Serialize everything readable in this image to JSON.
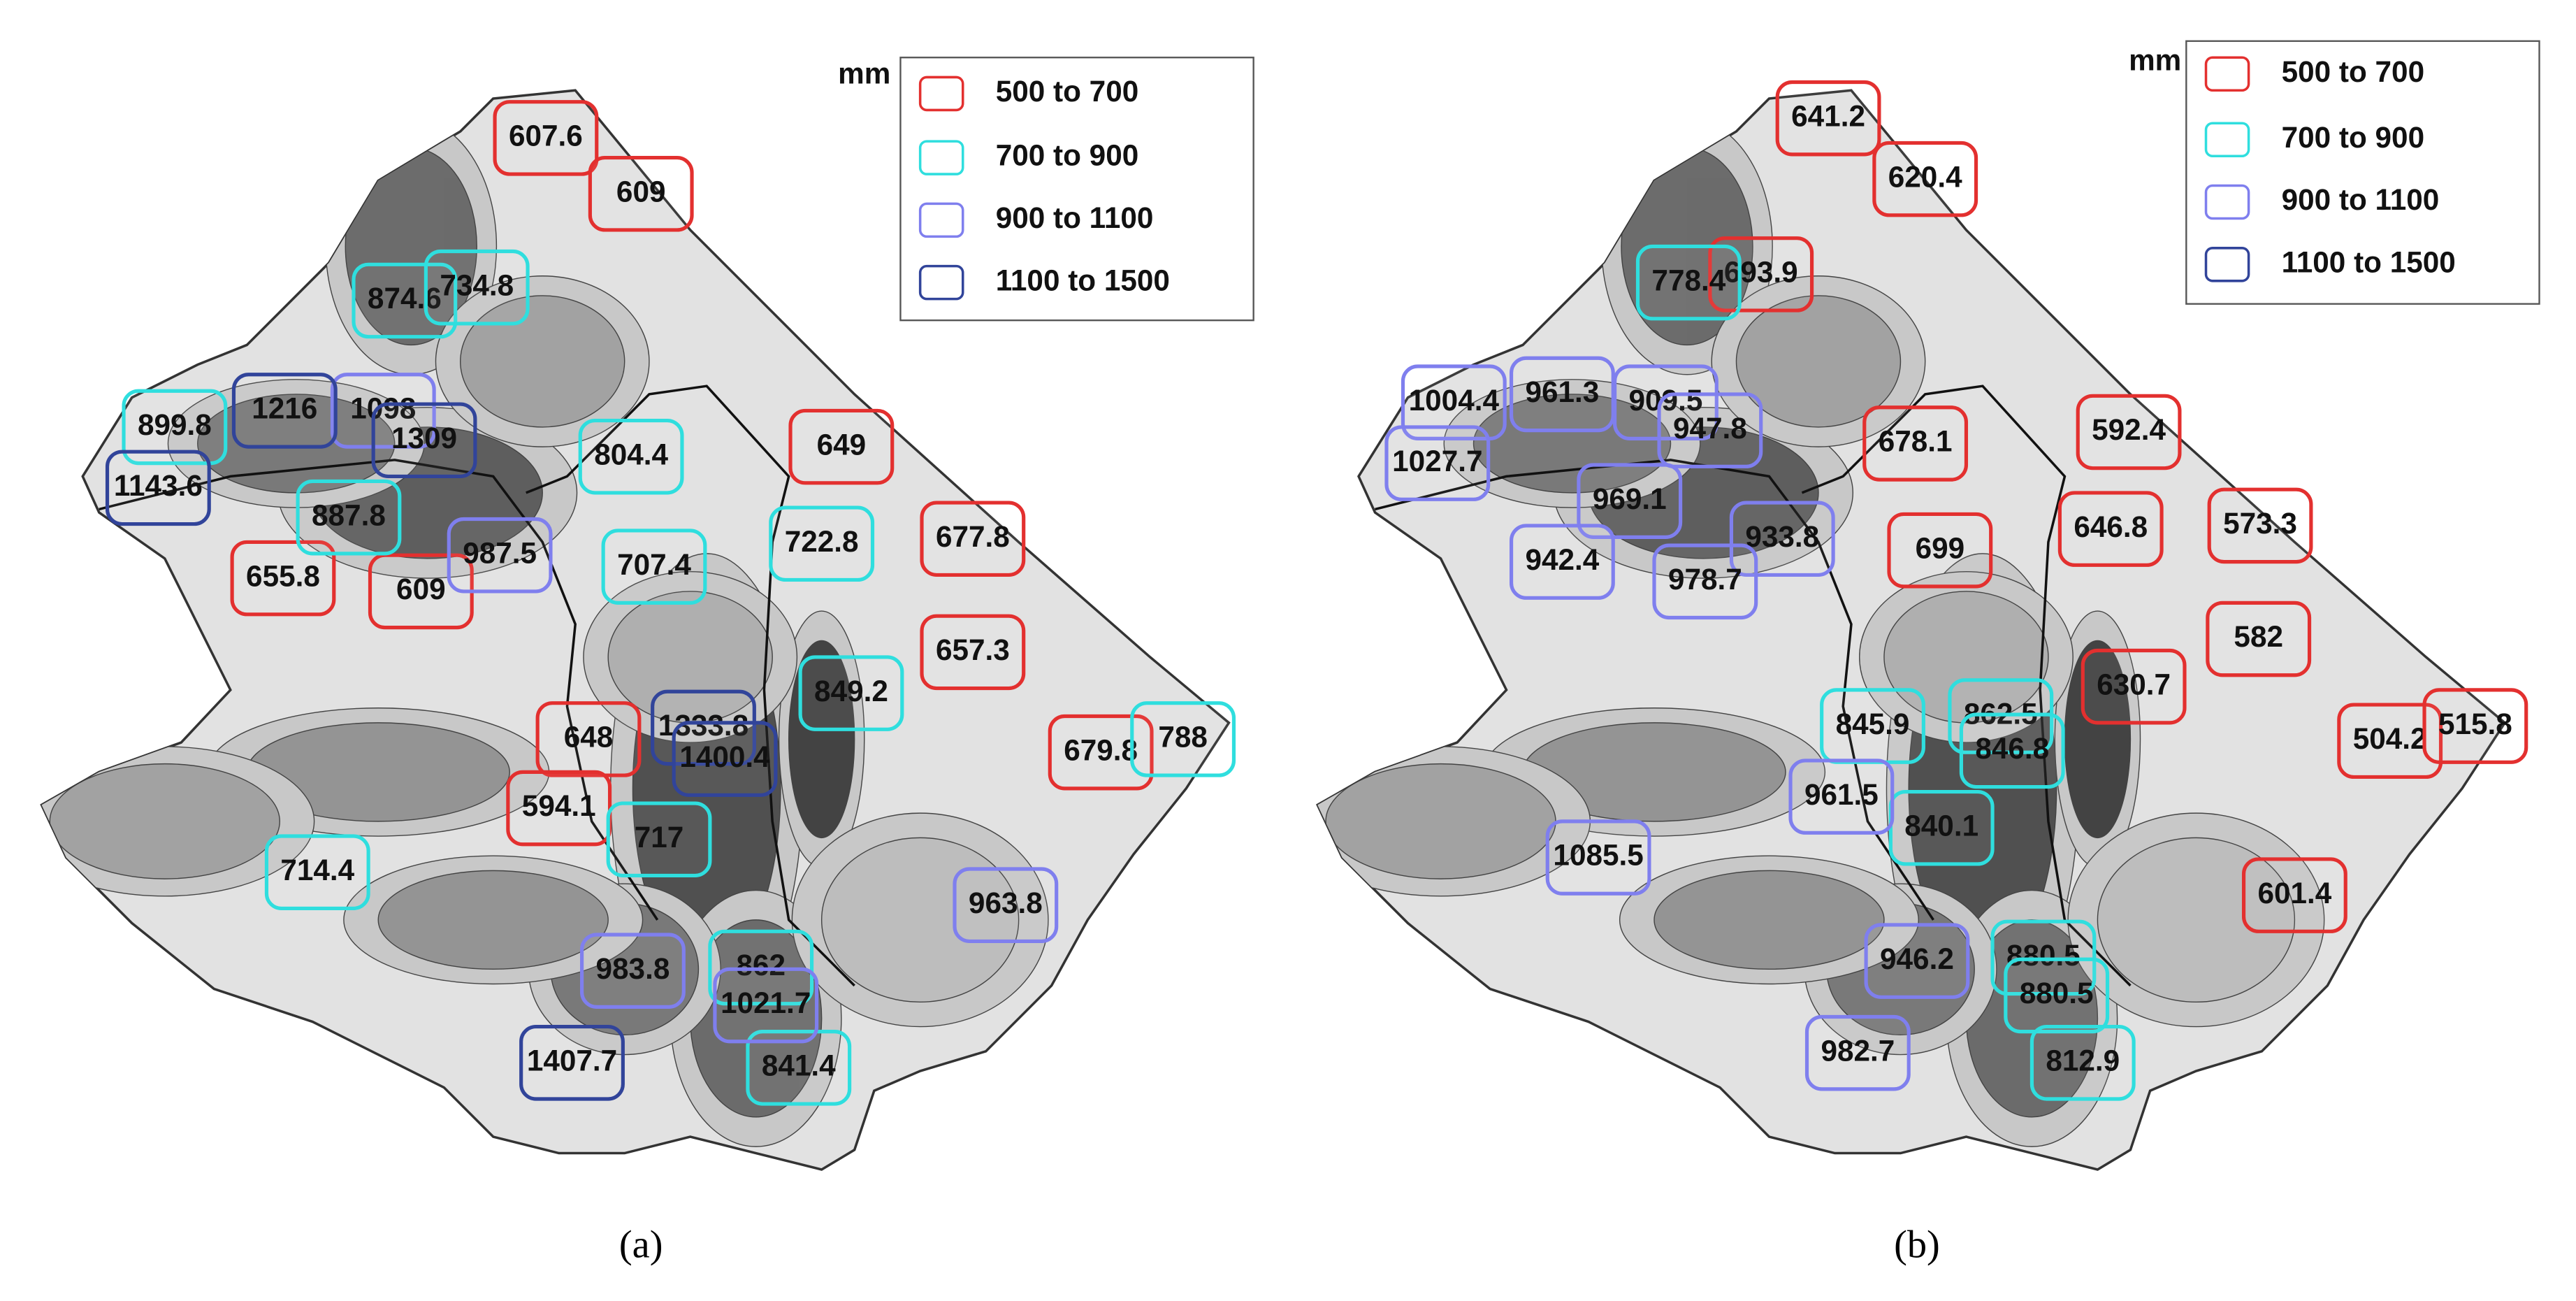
{
  "panels": [
    {
      "caption": "(a)",
      "unit": "mm",
      "legend": [
        {
          "label": "500 to 700",
          "color": "#e3302f",
          "stations": [
            "607.6",
            "609",
            "649",
            "655.8",
            "609",
            "677.8",
            "657.3",
            "648",
            "679.8",
            "594.1"
          ]
        },
        {
          "label": "700 to 900",
          "color": "#2fdede",
          "stations": [
            "874.6",
            "734.8",
            "899.8",
            "887.8",
            "804.4",
            "707.4",
            "722.8",
            "849.2",
            "788",
            "717",
            "714.4",
            "862",
            "841.4"
          ]
        },
        {
          "label": "900 to 1100",
          "color": "#7f7fee",
          "stations": [
            "1098",
            "987.5",
            "963.8",
            "983.8",
            "1021.7"
          ]
        },
        {
          "label": "1100 to 1500",
          "color": "#31449a",
          "stations": [
            "1216",
            "1309",
            "1143.6",
            "1333.8",
            "1400.4",
            "1407.7"
          ]
        }
      ]
    },
    {
      "caption": "(b)",
      "unit": "mm",
      "legend": [
        {
          "label": "500 to 700",
          "color": "#e3302f",
          "stations": [
            "641.2",
            "620.4",
            "693.9",
            "678.1",
            "592.4",
            "646.8",
            "573.3",
            "699",
            "582",
            "630.7",
            "504.2",
            "515.8",
            "601.4"
          ]
        },
        {
          "label": "700 to 900",
          "color": "#2fdede",
          "stations": [
            "778.4",
            "845.9",
            "862.5",
            "846.8",
            "840.1",
            "880.5",
            "880.5",
            "812.9"
          ]
        },
        {
          "label": "900 to 1100",
          "color": "#7f7fee",
          "stations": [
            "1004.4",
            "961.3",
            "909.5",
            "947.8",
            "1027.7",
            "969.1",
            "933.8",
            "942.4",
            "978.7",
            "961.5",
            "1085.5",
            "946.2",
            "982.7"
          ]
        },
        {
          "label": "1100 to 1500",
          "color": "#31449a",
          "stations": []
        }
      ]
    }
  ]
}
